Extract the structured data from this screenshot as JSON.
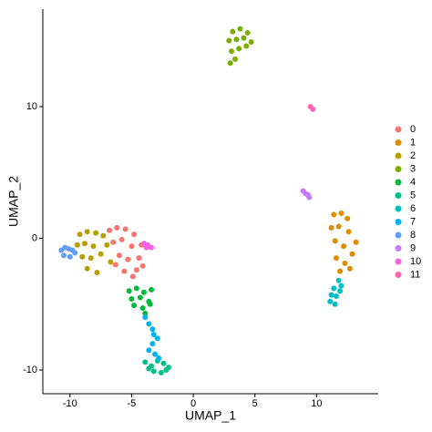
{
  "chart_data": {
    "type": "scatter",
    "xlabel": "UMAP_1",
    "ylabel": "UMAP_2",
    "xlim": [
      -12.2,
      15
    ],
    "ylim": [
      -11.8,
      17.4
    ],
    "xticks": [
      -10,
      -5,
      0,
      5,
      10
    ],
    "yticks": [
      -10,
      0,
      10
    ],
    "grid": false,
    "legend": "right",
    "series": [
      {
        "name": "0",
        "color": "#F8766D",
        "x": [
          -6.8,
          -6.2,
          -5.5,
          -4.8,
          -4.2,
          -6.5,
          -5.8,
          -5.0,
          -4.4,
          -6.0,
          -5.3,
          -4.6,
          -5.6,
          -4.9,
          -4.1,
          -6.3
        ],
        "values": [
          0.6,
          0.8,
          0.7,
          0.3,
          -0.5,
          -0.3,
          -0.1,
          -0.6,
          -1.5,
          -1.3,
          -1.6,
          -2.4,
          -2.5,
          -2.9,
          -2.1,
          -2.0
        ]
      },
      {
        "name": "1",
        "color": "#DE8C00",
        "x": [
          11.4,
          12.0,
          12.5,
          11.2,
          11.8,
          12.6,
          13.2,
          11.5,
          12.2,
          12.9,
          11.6,
          12.3,
          11.9,
          12.7
        ],
        "values": [
          1.8,
          1.9,
          1.5,
          0.8,
          0.9,
          0.5,
          -0.3,
          -0.2,
          -0.6,
          -1.2,
          -1.5,
          -1.9,
          -2.5,
          -2.3
        ]
      },
      {
        "name": "2",
        "color": "#B79F00",
        "x": [
          -9.2,
          -8.6,
          -7.9,
          -7.3,
          -9.4,
          -8.8,
          -8.1,
          -7.0,
          -9.0,
          -8.3,
          -7.5,
          -6.7,
          -8.6,
          -7.8
        ],
        "values": [
          0.3,
          0.5,
          0.4,
          0.2,
          -0.5,
          -0.4,
          -0.6,
          -0.5,
          -1.4,
          -1.5,
          -1.2,
          -1.8,
          -2.3,
          -2.6
        ]
      },
      {
        "name": "3",
        "color": "#7CAE00",
        "x": [
          3.2,
          3.8,
          4.4,
          2.9,
          3.5,
          4.1,
          4.7,
          3.1,
          3.7,
          4.3,
          3.4,
          3.0
        ],
        "values": [
          15.7,
          15.9,
          15.6,
          15.0,
          15.1,
          15.2,
          14.9,
          14.2,
          14.4,
          14.6,
          13.6,
          13.3
        ]
      },
      {
        "name": "4",
        "color": "#00BA38",
        "x": [
          -5.2,
          -4.6,
          -4.0,
          -3.4,
          -5.0,
          -4.3,
          -3.6,
          -4.8,
          -4.1,
          -3.5,
          -3.9
        ],
        "values": [
          -4.0,
          -3.8,
          -4.1,
          -3.9,
          -4.6,
          -4.5,
          -4.8,
          -5.1,
          -5.3,
          -5.0,
          -5.7
        ]
      },
      {
        "name": "5",
        "color": "#00C08B",
        "x": [
          -3.9,
          -3.4,
          -2.9,
          -2.4,
          -2.0,
          -3.2,
          -2.6,
          -2.2,
          -3.6
        ],
        "values": [
          -9.4,
          -9.7,
          -9.3,
          -9.5,
          -9.8,
          -10.1,
          -10.2,
          -10.0,
          -9.9
        ]
      },
      {
        "name": "6",
        "color": "#00BFC4",
        "x": [
          11.8,
          12.0,
          11.4,
          11.9,
          11.2,
          11.6,
          11.1,
          11.5
        ],
        "values": [
          -3.2,
          -3.6,
          -3.8,
          -4.0,
          -4.3,
          -4.4,
          -4.8,
          -5.0
        ]
      },
      {
        "name": "7",
        "color": "#00B4F0",
        "x": [
          -3.9,
          -3.6,
          -3.3,
          -3.2,
          -2.9,
          -3.3,
          -3.6,
          -3.1,
          -2.8
        ],
        "values": [
          -6.0,
          -6.5,
          -6.9,
          -7.3,
          -7.6,
          -8.0,
          -8.5,
          -8.8,
          -9.1
        ]
      },
      {
        "name": "8",
        "color": "#619CFF",
        "x": [
          -10.7,
          -10.4,
          -10.1,
          -9.8,
          -10.5,
          -10.0,
          -9.6
        ],
        "values": [
          -0.9,
          -0.7,
          -0.8,
          -0.9,
          -1.3,
          -1.4,
          -1.1
        ]
      },
      {
        "name": "9",
        "color": "#C77CFF",
        "x": [
          8.9,
          9.1,
          9.3,
          9.4
        ],
        "values": [
          3.6,
          3.4,
          3.3,
          3.1
        ]
      },
      {
        "name": "10",
        "color": "#F564E3",
        "x": [
          -4.0,
          -3.7,
          -3.4,
          -3.8
        ],
        "values": [
          -0.4,
          -0.5,
          -0.7,
          -0.7
        ]
      },
      {
        "name": "11",
        "color": "#FF64B0",
        "x": [
          9.5,
          9.7
        ],
        "values": [
          10.0,
          9.8
        ]
      }
    ]
  }
}
